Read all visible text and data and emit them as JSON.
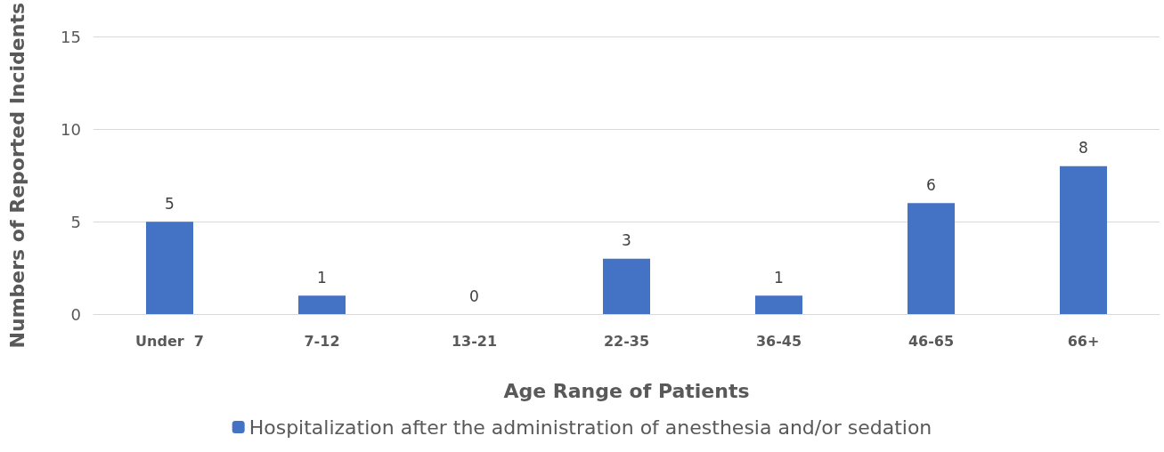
{
  "chart_data": {
    "type": "bar",
    "xlabel": "Age Range of Patients",
    "ylabel": "Numbers of Reported Incidents",
    "categories": [
      "Under  7",
      "7-12",
      "13-21",
      "22-35",
      "36-45",
      "46-65",
      "66+"
    ],
    "series": [
      {
        "name": "Hospitalization after the administration of anesthesia and/or sedation",
        "color": "#4472c4",
        "values": [
          5,
          1,
          0,
          3,
          1,
          6,
          8
        ]
      }
    ],
    "ylim": [
      0,
      15
    ],
    "yticks": [
      0,
      5,
      10,
      15
    ],
    "grid": "y",
    "legend": "bottom",
    "data_labels": true
  }
}
